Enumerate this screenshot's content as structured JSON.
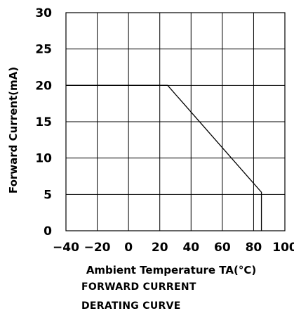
{
  "chart_data": {
    "type": "line",
    "title": "",
    "xlabel": "Ambient Temperature TA(°C)",
    "ylabel": "Forward Current(mA)",
    "xlim": [
      -40,
      100
    ],
    "ylim": [
      0,
      30
    ],
    "x_ticks": [
      -40,
      -20,
      0,
      20,
      40,
      60,
      80,
      100
    ],
    "x_tick_labels": [
      "−40",
      "−20",
      "0",
      "20",
      "40",
      "60",
      "80",
      "100"
    ],
    "y_ticks": [
      0,
      5,
      10,
      15,
      20,
      25,
      30
    ],
    "y_tick_labels": [
      "0",
      "5",
      "10",
      "15",
      "20",
      "25",
      "30"
    ],
    "grid": true,
    "series": [
      {
        "x": [
          -40,
          25,
          85,
          85
        ],
        "y": [
          20,
          20,
          5.3,
          0
        ]
      }
    ],
    "caption_lines": [
      "FORWARD CURRENT",
      "DERATING CURVE"
    ]
  }
}
